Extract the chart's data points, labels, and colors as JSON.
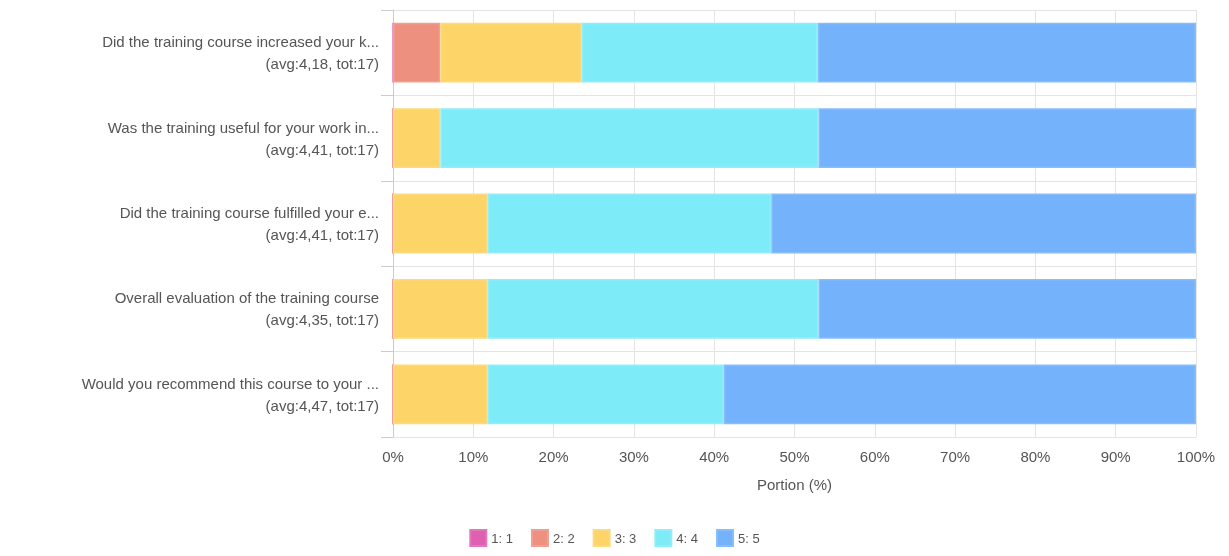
{
  "chart_data": {
    "type": "bar",
    "orientation": "horizontal",
    "stacked": true,
    "xlabel": "Portion (%)",
    "categories": [
      "Did the training course increased your k...\n(avg:4,18, tot:17)",
      "Was the training useful for your work in...\n(avg:4,41, tot:17)",
      "Did the training course fulfilled your e...\n(avg:4,41, tot:17)",
      "Overall evaluation of the training course\n(avg:4,35, tot:17)",
      "Would you recommend this course to your ...\n(avg:4,47, tot:17)"
    ],
    "series": [
      {
        "name": "1: 1",
        "color": "#df5fb0",
        "values": [
          0,
          0,
          0,
          0,
          0
        ]
      },
      {
        "name": "2: 2",
        "color": "#ee9080",
        "values": [
          5.9,
          0,
          0,
          0,
          0
        ]
      },
      {
        "name": "3: 3",
        "color": "#fdd468",
        "values": [
          17.6,
          5.9,
          11.8,
          11.8,
          11.8
        ]
      },
      {
        "name": "4: 4",
        "color": "#7eebf9",
        "values": [
          29.4,
          47.1,
          35.3,
          41.2,
          29.4
        ]
      },
      {
        "name": "5: 5",
        "color": "#74b2fb",
        "values": [
          47.1,
          47.0,
          52.9,
          47.0,
          58.8
        ]
      }
    ],
    "xlim": [
      0,
      100
    ],
    "xticks": [
      {
        "value": 0,
        "label": "0%"
      },
      {
        "value": 10,
        "label": "10%"
      },
      {
        "value": 20,
        "label": "20%"
      },
      {
        "value": 30,
        "label": "30%"
      },
      {
        "value": 40,
        "label": "40%"
      },
      {
        "value": 50,
        "label": "50%"
      },
      {
        "value": 60,
        "label": "60%"
      },
      {
        "value": 70,
        "label": "70%"
      },
      {
        "value": 80,
        "label": "80%"
      },
      {
        "value": 90,
        "label": "90%"
      },
      {
        "value": 100,
        "label": "100%"
      }
    ],
    "grid": true,
    "legend": "bottom"
  }
}
